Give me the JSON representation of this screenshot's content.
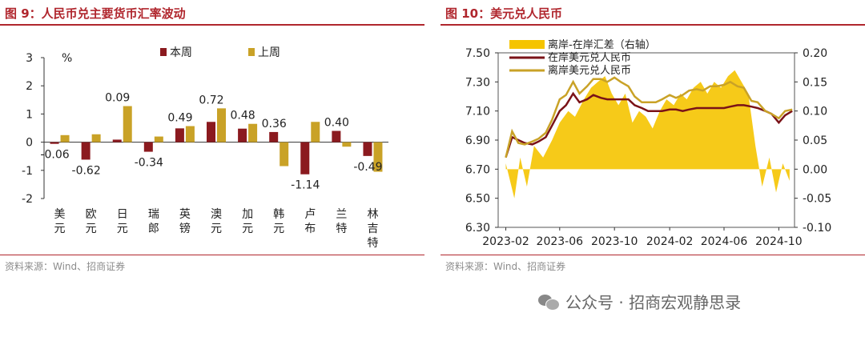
{
  "left": {
    "title": "图 9：人民币兑主要货币汇率波动",
    "source": "资料来源：Wind、招商证券",
    "chart_data": {
      "type": "bar",
      "ylabel": "%",
      "ylim": [
        -2,
        3
      ],
      "yticks": [
        "3",
        "2",
        "1",
        "0",
        "-1",
        "-2"
      ],
      "categories": [
        "美元",
        "欧元",
        "日元",
        "瑞郎",
        "英镑",
        "澳元",
        "加元",
        "韩元",
        "卢布",
        "兰特",
        "林吉特"
      ],
      "series": [
        {
          "name": "本周",
          "color": "#8b1a1f",
          "values": [
            -0.06,
            -0.62,
            0.09,
            -0.34,
            0.49,
            0.72,
            0.48,
            0.36,
            -1.14,
            0.4,
            -0.49
          ]
        },
        {
          "name": "上周",
          "color": "#c9a227",
          "values": [
            0.25,
            0.28,
            1.28,
            0.2,
            0.57,
            1.2,
            0.65,
            -0.85,
            0.72,
            -0.16,
            -1.05
          ]
        }
      ],
      "data_labels": [
        "-0.06",
        "-0.62",
        "0.09",
        "-0.34",
        "0.49",
        "0.72",
        "0.48",
        "0.36",
        "-1.14",
        "0.40",
        "-0.49"
      ],
      "legend": "top"
    }
  },
  "right": {
    "title": "图 10：美元兑人民币",
    "source": "资料来源：Wind、招商证券",
    "chart_data": {
      "type": "line",
      "x_ticks": [
        "2023-02",
        "2023-06",
        "2023-10",
        "2024-02",
        "2024-06",
        "2024-10"
      ],
      "y_left_ticks": [
        "7.50",
        "7.30",
        "7.10",
        "6.90",
        "6.70",
        "6.50",
        "6.30"
      ],
      "y_right_ticks": [
        "0.20",
        "0.15",
        "0.10",
        "0.05",
        "0.00",
        "-0.05",
        "-0.10"
      ],
      "ylim_left": [
        6.3,
        7.5
      ],
      "ylim_right": [
        -0.1,
        0.2
      ],
      "series": [
        {
          "name": "离岸-在岸汇差（右轴）",
          "type": "area",
          "axis": "right",
          "color": "#f5c400",
          "x": [
            "2023-02-01",
            "2023-02-20",
            "2023-03-05",
            "2023-03-20",
            "2023-04-05",
            "2023-04-25",
            "2023-05-15",
            "2023-06-01",
            "2023-06-20",
            "2023-07-05",
            "2023-07-25",
            "2023-08-10",
            "2023-08-25",
            "2023-09-10",
            "2023-09-25",
            "2023-10-10",
            "2023-10-25",
            "2023-11-10",
            "2023-11-25",
            "2023-12-10",
            "2023-12-25",
            "2024-01-10",
            "2024-01-25",
            "2024-02-10",
            "2024-02-25",
            "2024-03-10",
            "2024-03-25",
            "2024-04-10",
            "2024-04-25",
            "2024-05-10",
            "2024-05-25",
            "2024-06-10",
            "2024-06-25",
            "2024-07-10",
            "2024-07-25",
            "2024-08-10",
            "2024-08-25",
            "2024-09-10",
            "2024-09-25",
            "2024-10-10",
            "2024-10-25"
          ],
          "values": [
            0.01,
            -0.05,
            0.02,
            -0.03,
            0.04,
            0.02,
            0.05,
            0.08,
            0.1,
            0.09,
            0.12,
            0.14,
            0.15,
            0.16,
            0.13,
            0.11,
            0.13,
            0.08,
            0.1,
            0.09,
            0.07,
            0.1,
            0.12,
            0.11,
            0.13,
            0.12,
            0.14,
            0.15,
            0.13,
            0.15,
            0.14,
            0.16,
            0.17,
            0.15,
            0.13,
            0.04,
            -0.03,
            0.02,
            -0.04,
            0.01,
            -0.02
          ]
        },
        {
          "name": "在岸美元兑人民币",
          "type": "line",
          "axis": "left",
          "color": "#7a1217",
          "x": [
            "2023-02-01",
            "2023-02-15",
            "2023-03-01",
            "2023-03-15",
            "2023-04-01",
            "2023-04-15",
            "2023-05-01",
            "2023-05-15",
            "2023-06-01",
            "2023-06-15",
            "2023-07-01",
            "2023-07-15",
            "2023-08-01",
            "2023-08-15",
            "2023-09-01",
            "2023-09-15",
            "2023-10-01",
            "2023-10-15",
            "2023-11-01",
            "2023-11-15",
            "2023-12-01",
            "2023-12-15",
            "2024-01-01",
            "2024-01-15",
            "2024-02-01",
            "2024-02-15",
            "2024-03-01",
            "2024-03-15",
            "2024-04-01",
            "2024-04-15",
            "2024-05-01",
            "2024-05-15",
            "2024-06-01",
            "2024-06-15",
            "2024-07-01",
            "2024-07-15",
            "2024-08-01",
            "2024-08-15",
            "2024-09-01",
            "2024-09-15",
            "2024-10-01",
            "2024-10-15",
            "2024-10-31"
          ],
          "values": [
            6.78,
            6.92,
            6.9,
            6.88,
            6.87,
            6.89,
            6.92,
            7.0,
            7.1,
            7.14,
            7.22,
            7.16,
            7.18,
            7.21,
            7.19,
            7.18,
            7.18,
            7.18,
            7.18,
            7.14,
            7.12,
            7.1,
            7.1,
            7.1,
            7.11,
            7.11,
            7.1,
            7.11,
            7.12,
            7.12,
            7.12,
            7.12,
            7.12,
            7.13,
            7.14,
            7.14,
            7.13,
            7.12,
            7.1,
            7.08,
            7.02,
            7.07,
            7.1
          ]
        },
        {
          "name": "离岸美元兑人民币",
          "type": "line",
          "axis": "left",
          "color": "#c9a227",
          "x": [
            "2023-02-01",
            "2023-02-15",
            "2023-03-01",
            "2023-03-15",
            "2023-04-01",
            "2023-04-15",
            "2023-05-01",
            "2023-05-15",
            "2023-06-01",
            "2023-06-15",
            "2023-07-01",
            "2023-07-15",
            "2023-08-01",
            "2023-08-15",
            "2023-09-01",
            "2023-09-15",
            "2023-10-01",
            "2023-10-15",
            "2023-11-01",
            "2023-11-15",
            "2023-12-01",
            "2023-12-15",
            "2024-01-01",
            "2024-01-15",
            "2024-02-01",
            "2024-02-15",
            "2024-03-01",
            "2024-03-15",
            "2024-04-01",
            "2024-04-15",
            "2024-05-01",
            "2024-05-15",
            "2024-06-01",
            "2024-06-15",
            "2024-07-01",
            "2024-07-15",
            "2024-08-01",
            "2024-08-15",
            "2024-09-01",
            "2024-09-15",
            "2024-10-01",
            "2024-10-15",
            "2024-10-31"
          ],
          "values": [
            6.78,
            6.96,
            6.88,
            6.87,
            6.89,
            6.91,
            6.95,
            7.04,
            7.18,
            7.21,
            7.3,
            7.22,
            7.27,
            7.32,
            7.32,
            7.3,
            7.33,
            7.3,
            7.27,
            7.2,
            7.16,
            7.16,
            7.16,
            7.18,
            7.21,
            7.19,
            7.21,
            7.24,
            7.25,
            7.24,
            7.27,
            7.27,
            7.28,
            7.3,
            7.27,
            7.26,
            7.17,
            7.16,
            7.1,
            7.08,
            7.05,
            7.1,
            7.11
          ]
        }
      ],
      "legend": "top-left"
    }
  },
  "watermark": "公众号 · 招商宏观静思录"
}
